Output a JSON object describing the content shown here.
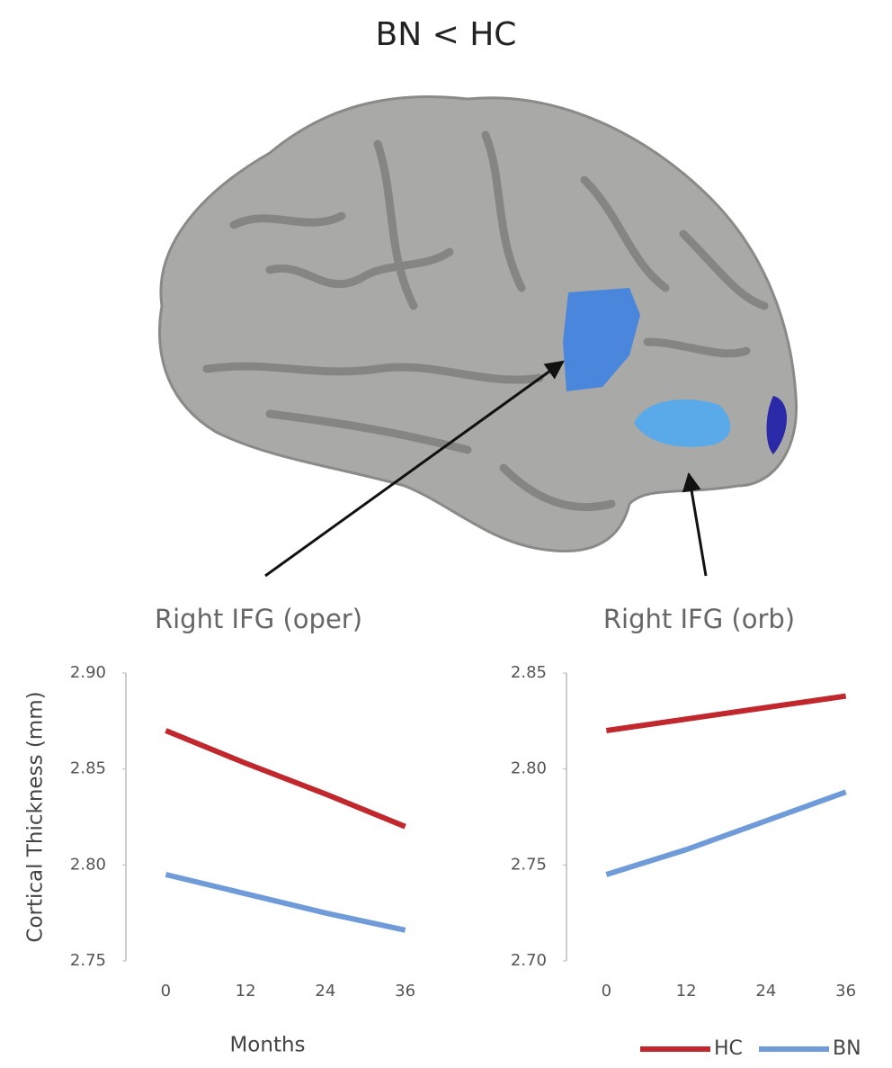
{
  "title": "BN < HC",
  "chart_data": [
    {
      "type": "line",
      "title": "Right IFG (oper)",
      "ylabel": "Cortical Thickness (mm)",
      "xlabel": "Months",
      "x": [
        0,
        12,
        24,
        36
      ],
      "xlim": [
        -6,
        42
      ],
      "xticks": [
        0,
        12,
        24,
        36
      ],
      "ylim": [
        2.75,
        2.9
      ],
      "yticks": [
        2.75,
        {
          "value": 2.8,
          "label": "2.80"
        },
        2.85,
        {
          "value": 2.9,
          "label": "2.90"
        }
      ],
      "series": [
        {
          "name": "HC",
          "color": "#c0282d",
          "values": [
            2.87,
            2.853,
            2.837,
            2.82
          ]
        },
        {
          "name": "BN",
          "color": "#6f9bd8",
          "values": [
            2.795,
            2.785,
            2.775,
            2.766
          ]
        }
      ]
    },
    {
      "type": "line",
      "title": "Right IFG (orb)",
      "legend": "lower right",
      "x": [
        0,
        12,
        24,
        36
      ],
      "xlim": [
        -6,
        42
      ],
      "xticks": [
        0,
        12,
        24,
        36
      ],
      "ylim": [
        2.7,
        2.85
      ],
      "yticks": [
        {
          "value": 2.7,
          "label": "2.70"
        },
        2.75,
        {
          "value": 2.8,
          "label": "2.80"
        },
        2.85
      ],
      "series": [
        {
          "name": "HC",
          "color": "#c0282d",
          "values": [
            2.82,
            2.826,
            2.832,
            2.838
          ]
        },
        {
          "name": "BN",
          "color": "#6f9bd8",
          "values": [
            2.745,
            2.758,
            2.773,
            2.788
          ]
        }
      ]
    }
  ]
}
